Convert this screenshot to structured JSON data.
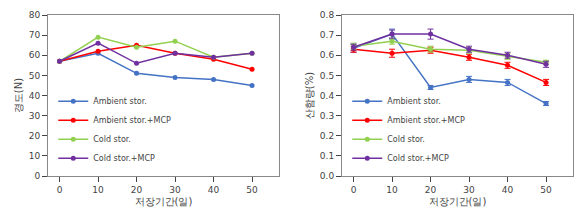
{
  "chart_data": [
    {
      "type": "line",
      "x": [
        0,
        10,
        20,
        30,
        40,
        50
      ],
      "xlabel": "저장기간(일)",
      "ylabel": "경도(N)",
      "xlim": [
        -3,
        57
      ],
      "xticks": [
        0,
        10,
        20,
        30,
        40,
        50
      ],
      "ylim": [
        0,
        80
      ],
      "yticks": [
        0,
        10,
        20,
        30,
        40,
        50,
        60,
        70,
        80
      ],
      "grid": false,
      "legend": "lower left",
      "marker": "circle",
      "series": [
        {
          "name": "Ambient stor.",
          "color": "#4472C4",
          "values": [
            57,
            61,
            51,
            49,
            48,
            45
          ]
        },
        {
          "name": "Ambient stor.+MCP",
          "color": "#FF0000",
          "values": [
            57,
            62,
            65,
            61,
            58,
            53
          ]
        },
        {
          "name": "Cold stor.",
          "color": "#92D050",
          "values": [
            57,
            69,
            64,
            67,
            59,
            61
          ]
        },
        {
          "name": "Cold stor.+MCP",
          "color": "#7030A0",
          "values": [
            57,
            66,
            56,
            61,
            59,
            61
          ]
        }
      ]
    },
    {
      "type": "line",
      "x": [
        0,
        10,
        20,
        30,
        40,
        50
      ],
      "xlabel": "저장기간(일)",
      "ylabel": "산함량(%)",
      "xlim": [
        -3,
        57
      ],
      "xticks": [
        0,
        10,
        20,
        30,
        40,
        50
      ],
      "ylim": [
        0.0,
        0.8
      ],
      "yticks": [
        {
          "value": 0,
          "label": "0.0"
        },
        0.1,
        0.2,
        0.3,
        0.4,
        0.5,
        0.6,
        0.7,
        0.8
      ],
      "grid": false,
      "legend": "lower left",
      "marker": "circle",
      "series": [
        {
          "name": "Ambient stor.",
          "color": "#4472C4",
          "values": [
            0.635,
            0.705,
            0.44,
            0.48,
            0.465,
            0.36
          ],
          "errors": [
            0.02,
            0.025,
            0.01,
            0.015,
            0.015,
            0.01
          ]
        },
        {
          "name": "Ambient stor.+MCP",
          "color": "#FF0000",
          "values": [
            0.63,
            0.61,
            0.625,
            0.59,
            0.55,
            0.465
          ],
          "errors": [
            0.015,
            0.02,
            0.015,
            0.015,
            0.015,
            0.015
          ]
        },
        {
          "name": "Cold stor.",
          "color": "#92D050",
          "values": [
            0.645,
            0.67,
            0.63,
            0.625,
            0.595,
            0.565
          ],
          "errors": [
            0.015,
            0.015,
            0.015,
            0.015,
            0.015,
            0.01
          ]
        },
        {
          "name": "Cold stor.+MCP",
          "color": "#7030A0",
          "values": [
            0.64,
            0.705,
            0.705,
            0.63,
            0.6,
            0.555
          ],
          "errors": [
            0.015,
            0.02,
            0.025,
            0.015,
            0.015,
            0.015
          ]
        }
      ]
    }
  ]
}
